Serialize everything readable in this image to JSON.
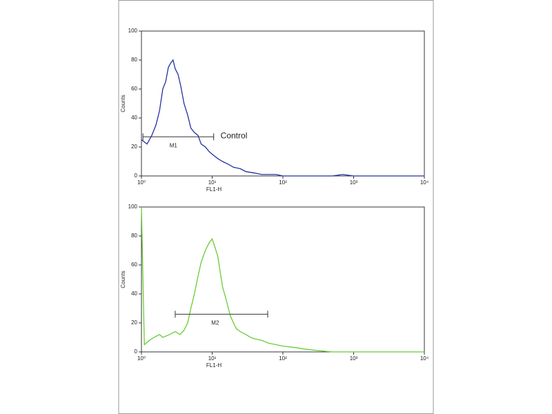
{
  "chart_data": [
    {
      "type": "line",
      "xlabel": "FL1-H",
      "ylabel": "Counts",
      "log_x": true,
      "xlim": [
        1,
        10000
      ],
      "xticks": [
        {
          "value": 1,
          "label": "10⁰"
        },
        {
          "value": 10,
          "label": "10¹"
        },
        {
          "value": 100,
          "label": "10²"
        },
        {
          "value": 1000,
          "label": "10³"
        },
        {
          "value": 10000,
          "label": "10⁴"
        }
      ],
      "ylim": [
        0,
        100
      ],
      "yticks": [
        0,
        20,
        40,
        60,
        80,
        100
      ],
      "x": [
        1,
        1.2,
        1.4,
        1.6,
        1.8,
        2,
        2.2,
        2.4,
        2.6,
        2.8,
        3,
        3.3,
        3.6,
        4,
        4.5,
        5,
        5.6,
        6.3,
        7,
        8,
        9,
        10,
        12,
        14,
        17,
        20,
        25,
        30,
        40,
        50,
        63,
        80,
        100,
        150,
        200,
        300,
        500,
        700,
        1000,
        2000,
        5000,
        10000
      ],
      "series": [
        {
          "color": "#22309f",
          "values": [
            25,
            22,
            28,
            35,
            45,
            60,
            65,
            75,
            78,
            80,
            74,
            70,
            62,
            50,
            42,
            33,
            30,
            28,
            22,
            20,
            17,
            15,
            12,
            10,
            8,
            6,
            5,
            3,
            2,
            1,
            1,
            1,
            0,
            0,
            0,
            0,
            0,
            1,
            0,
            0,
            0,
            0
          ]
        }
      ],
      "gate": {
        "label": "M1",
        "xrange": [
          1.05,
          10.5
        ],
        "y": 27
      },
      "annotation": "Control"
    },
    {
      "type": "line",
      "xlabel": "FL1-H",
      "ylabel": "Counts",
      "log_x": true,
      "xlim": [
        1,
        10000
      ],
      "xticks": [
        {
          "value": 1,
          "label": "10⁰"
        },
        {
          "value": 10,
          "label": "10¹"
        },
        {
          "value": 100,
          "label": "10²"
        },
        {
          "value": 1000,
          "label": "10³"
        },
        {
          "value": 10000,
          "label": "10⁴"
        }
      ],
      "ylim": [
        0,
        100
      ],
      "yticks": [
        0,
        20,
        40,
        60,
        80,
        100
      ],
      "x": [
        1,
        1.1,
        1.3,
        1.5,
        1.8,
        2,
        2.5,
        3,
        3.5,
        4,
        4.5,
        5,
        5.6,
        6.3,
        7,
        8,
        9,
        10,
        11,
        12,
        13,
        14,
        16,
        18,
        20,
        22,
        25,
        30,
        35,
        40,
        50,
        63,
        80,
        100,
        150,
        200,
        300,
        500,
        1000,
        2000,
        5000,
        10000
      ],
      "series": [
        {
          "color": "#66cc33",
          "values": [
            100,
            5,
            8,
            10,
            12,
            10,
            12,
            14,
            12,
            15,
            20,
            30,
            40,
            52,
            62,
            70,
            75,
            78,
            72,
            66,
            55,
            45,
            35,
            25,
            20,
            16,
            14,
            12,
            10,
            9,
            8,
            6,
            5,
            4,
            3,
            2,
            1,
            0,
            0,
            0,
            0,
            0
          ]
        }
      ],
      "gate": {
        "label": "M2",
        "xrange": [
          3,
          61
        ],
        "y": 26
      }
    }
  ]
}
